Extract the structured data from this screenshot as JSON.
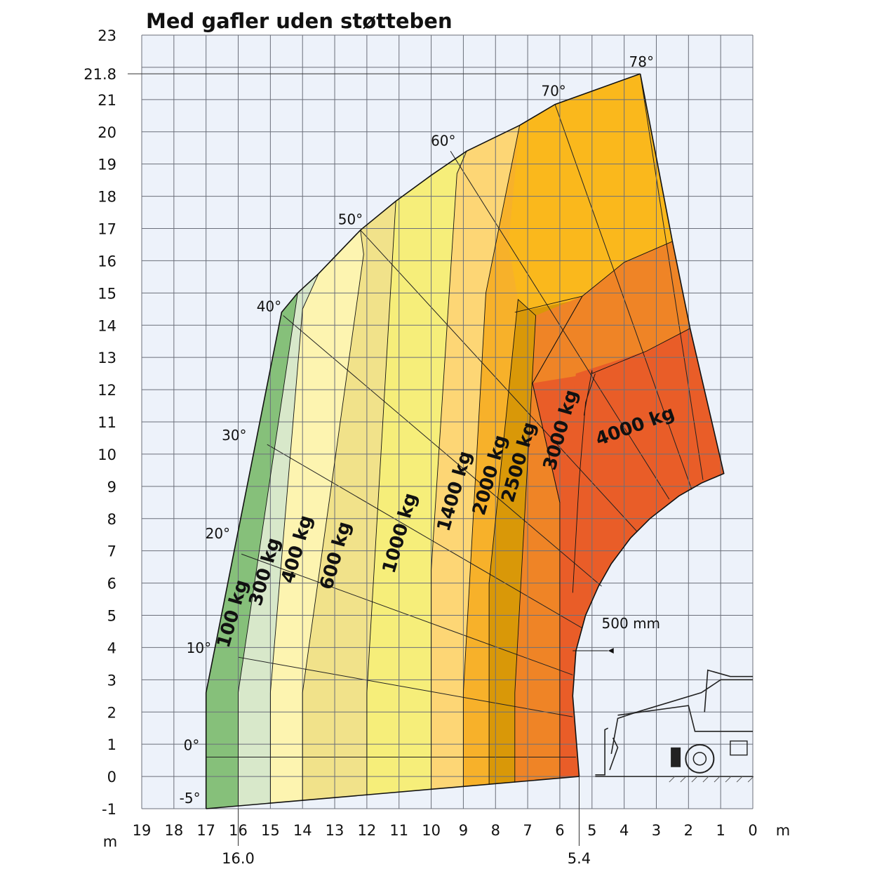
{
  "chart_data": {
    "type": "area",
    "title": "Med gafler uden støtteben",
    "x_unit": "m",
    "y_unit": "m",
    "x_ticks": [
      19,
      18,
      17,
      16,
      15,
      14,
      13,
      12,
      11,
      10,
      9,
      8,
      7,
      6,
      5,
      4,
      3,
      2,
      1,
      0
    ],
    "y_ticks": [
      23,
      21.8,
      21,
      20,
      19,
      18,
      17,
      16,
      15,
      14,
      13,
      12,
      11,
      10,
      9,
      8,
      7,
      6,
      5,
      4,
      3,
      2,
      1,
      0,
      -1
    ],
    "xlim": [
      19,
      0
    ],
    "ylim": [
      -1,
      23
    ],
    "grid": true,
    "max_height": "21.8",
    "reach_markers": [
      {
        "x": 16.0,
        "label": "16.0"
      },
      {
        "x": 5.4,
        "label": "5.4"
      }
    ],
    "annotation_500mm": "500 mm",
    "boom_angles": [
      {
        "label": "-5°",
        "x": 17.0,
        "y": -1.0
      },
      {
        "label": "0°",
        "x": 17.0,
        "y": 0.6
      },
      {
        "label": "10°",
        "x": 17.0,
        "y": 3.7
      },
      {
        "label": "20°",
        "x": 16.5,
        "y": 7.3
      },
      {
        "label": "30°",
        "x": 15.9,
        "y": 10.3
      },
      {
        "label": "40°",
        "x": 14.6,
        "y": 14.3
      },
      {
        "label": "50°",
        "x": 12.2,
        "y": 17.0
      },
      {
        "label": "60°",
        "x": 9.4,
        "y": 19.4
      },
      {
        "label": "70°",
        "x": 6.1,
        "y": 20.9
      },
      {
        "label": "78°",
        "x": 3.5,
        "y": 21.8
      }
    ],
    "series": [
      {
        "name": "100 kg",
        "color": "#86c07a",
        "outer_x_at_ground": 17.0,
        "label_at": [
          16.0,
          5.0
        ]
      },
      {
        "name": "300 kg",
        "color": "#d8e8ca",
        "outer_x_at_ground": 16.0,
        "label_at": [
          15.0,
          6.3
        ]
      },
      {
        "name": "400 kg",
        "color": "#fdf4b0",
        "outer_x_at_ground": 15.0,
        "label_at": [
          14.0,
          7.0
        ]
      },
      {
        "name": "600 kg",
        "color": "#f1e28a",
        "outer_x_at_ground": 14.0,
        "label_at": [
          12.8,
          6.8
        ]
      },
      {
        "name": "1000 kg",
        "color": "#f6ee7a",
        "outer_x_at_ground": 12.0,
        "label_at": [
          10.8,
          7.5
        ]
      },
      {
        "name": "1400 kg",
        "color": "#fdd675",
        "outer_x_at_ground": 10.0,
        "label_at": [
          9.1,
          8.8
        ]
      },
      {
        "name": "2000 kg",
        "color": "#f7b12a",
        "outer_x_at_ground": 9.0,
        "label_at": [
          8.0,
          9.3
        ]
      },
      {
        "name": "2500 kg",
        "color": "#d99808",
        "outer_x_at_ground": 8.2,
        "label_at": [
          7.1,
          9.7
        ]
      },
      {
        "name": "3000 kg",
        "color": "#ef8426",
        "outer_x_at_ground": 7.4,
        "label_at": [
          5.8,
          10.7
        ]
      },
      {
        "name": "4000 kg",
        "color": "#e95d28",
        "outer_x_at_ground": 6.0,
        "label_at": [
          3.6,
          10.7
        ]
      }
    ],
    "upper_zone_color": "#fab81c"
  }
}
